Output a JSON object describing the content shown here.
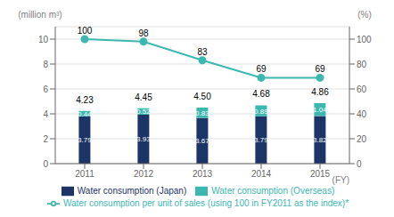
{
  "chart_data": {
    "type": "bar",
    "stacked": true,
    "categories": [
      "2011",
      "2012",
      "2013",
      "2014",
      "2015"
    ],
    "x_label": "(FY)",
    "y_label": "(million m³)",
    "y2_label": "(%)",
    "ylim": [
      0,
      11
    ],
    "yticks": [
      0,
      2,
      4,
      6,
      8,
      10
    ],
    "y2lim": [
      0,
      110
    ],
    "y2ticks": [
      0,
      20,
      40,
      60,
      80,
      100
    ],
    "grid": true,
    "legend": "bottom",
    "series": [
      {
        "name": "Water consumption (Japan)",
        "color": "#1c3566",
        "values": [
          3.79,
          3.93,
          3.67,
          3.79,
          3.82
        ],
        "data_labels": true
      },
      {
        "name": "Water consumption (Overseas)",
        "color": "#3cb8b0",
        "values": [
          0.44,
          0.52,
          0.83,
          0.89,
          1.04
        ],
        "data_labels": true
      },
      {
        "name": "Water consumption per unit of sales (using 100 in FY2011 as the index)*",
        "type": "line",
        "axis": "y2",
        "color": "#3cb8b0",
        "marker": "circle",
        "values": [
          100,
          98,
          83,
          69,
          69
        ],
        "data_labels": true
      }
    ],
    "totals": [
      4.23,
      4.45,
      4.5,
      4.68,
      4.86
    ],
    "total_labels": [
      "4.23",
      "4.45",
      "4.50",
      "4.68",
      "4.86"
    ]
  }
}
